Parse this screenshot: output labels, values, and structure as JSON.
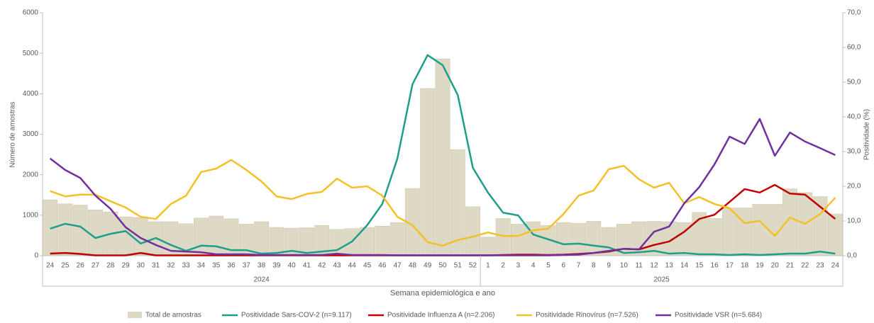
{
  "chart_data": {
    "type": "bar",
    "ylabel": "Número de amostras",
    "y2label": "Positividade (%)",
    "xlabel": "Semana epidemiológica e ano",
    "categories": [
      "24",
      "25",
      "26",
      "27",
      "28",
      "29",
      "30",
      "31",
      "32",
      "33",
      "34",
      "35",
      "36",
      "37",
      "38",
      "39",
      "40",
      "41",
      "42",
      "43",
      "44",
      "45",
      "46",
      "47",
      "48",
      "49",
      "50",
      "51",
      "52",
      "1",
      "2",
      "3",
      "4",
      "5",
      "6",
      "7",
      "8",
      "9",
      "10",
      "11",
      "12",
      "13",
      "14",
      "15",
      "16",
      "17",
      "18",
      "19",
      "20",
      "21",
      "22",
      "23",
      "24"
    ],
    "years": [
      "2024",
      "2024",
      "2024",
      "2024",
      "2024",
      "2024",
      "2024",
      "2024",
      "2024",
      "2024",
      "2024",
      "2024",
      "2024",
      "2024",
      "2024",
      "2024",
      "2024",
      "2024",
      "2024",
      "2024",
      "2024",
      "2024",
      "2024",
      "2024",
      "2024",
      "2024",
      "2024",
      "2024",
      "2024",
      "2025",
      "2025",
      "2025",
      "2025",
      "2025",
      "2025",
      "2025",
      "2025",
      "2025",
      "2025",
      "2025",
      "2025",
      "2025",
      "2025",
      "2025",
      "2025",
      "2025",
      "2025",
      "2025",
      "2025",
      "2025",
      "2025",
      "2025",
      "2025"
    ],
    "ylim": [
      0,
      6000
    ],
    "yticks": [
      0,
      1000,
      2000,
      3000,
      4000,
      5000,
      6000
    ],
    "y2lim": [
      0,
      70
    ],
    "y2ticks": [
      {
        "value": 0,
        "label": "0,0"
      },
      {
        "value": 10,
        "label": "10,0"
      },
      {
        "value": 20,
        "label": "20,0"
      },
      {
        "value": 30,
        "label": "30,0"
      },
      {
        "value": 40,
        "label": "40,0"
      },
      {
        "value": 50,
        "label": "50,0"
      },
      {
        "value": 60,
        "label": "60,0"
      },
      {
        "value": 70,
        "label": "70,0"
      }
    ],
    "series": [
      {
        "name": "Total de amostras",
        "type": "bar",
        "color": "#ddd9c4",
        "values": [
          1380,
          1280,
          1250,
          1130,
          1080,
          960,
          940,
          840,
          840,
          790,
          930,
          980,
          910,
          780,
          840,
          700,
          680,
          690,
          750,
          650,
          670,
          700,
          730,
          820,
          1660,
          4130,
          4860,
          2620,
          1210,
          460,
          920,
          780,
          840,
          750,
          820,
          800,
          850,
          700,
          780,
          840,
          850,
          840,
          820,
          1070,
          920,
          1180,
          1180,
          1270,
          1270,
          1650,
          1560,
          1460,
          1030
        ]
      },
      {
        "name": "Positividade Sars-COV-2 (n=9.117)",
        "type": "line",
        "axis": "y2",
        "color": "#1f9e89",
        "values": [
          7.8,
          9.2,
          8.4,
          5.1,
          6.3,
          7.1,
          3.5,
          5.1,
          3.1,
          1.4,
          2.9,
          2.7,
          1.6,
          1.6,
          0.6,
          0.8,
          1.4,
          0.8,
          1.2,
          1.6,
          4.1,
          8.8,
          14.9,
          28.0,
          49.4,
          57.8,
          54.9,
          46.3,
          25.3,
          18.2,
          12.4,
          11.6,
          6.1,
          4.7,
          3.3,
          3.5,
          2.9,
          2.4,
          0.8,
          1.0,
          1.4,
          0.6,
          0.8,
          0.4,
          0.4,
          0.2,
          0.4,
          0.2,
          0.4,
          0.6,
          0.6,
          1.2,
          0.6
        ]
      },
      {
        "name": "Positividade Influenza A (n=2.206)",
        "type": "line",
        "axis": "y2",
        "color": "#c00000",
        "values": [
          0.6,
          0.8,
          0.5,
          0.1,
          0.1,
          0.1,
          0.8,
          0.1,
          0.1,
          0.1,
          0.1,
          0.1,
          0.1,
          0.1,
          0.1,
          0.1,
          0.1,
          0.1,
          0.1,
          0.1,
          0.1,
          0.1,
          0.1,
          0.1,
          0.1,
          0.1,
          0.1,
          0.1,
          0.1,
          0.1,
          0.2,
          0.3,
          0.3,
          0.2,
          0.3,
          0.5,
          0.8,
          1.2,
          2.0,
          1.8,
          3.1,
          4.1,
          6.9,
          10.6,
          11.8,
          15.5,
          19.2,
          18.2,
          20.4,
          17.9,
          17.6,
          14.1,
          10.6
        ]
      },
      {
        "name": "Positividade Rinovírus (n=7.526)",
        "type": "line",
        "axis": "y2",
        "color": "#f4c02a",
        "values": [
          18.6,
          17.1,
          17.6,
          17.6,
          15.7,
          13.9,
          11.2,
          10.6,
          14.9,
          17.3,
          24.1,
          25.1,
          27.6,
          24.7,
          21.4,
          17.1,
          16.3,
          17.8,
          18.4,
          22.2,
          19.6,
          20.0,
          17.3,
          11.2,
          8.8,
          3.9,
          2.9,
          4.5,
          5.5,
          6.7,
          5.7,
          5.7,
          7.3,
          7.8,
          12.0,
          17.3,
          18.8,
          24.9,
          25.9,
          22.0,
          19.6,
          21.0,
          15.1,
          16.9,
          14.9,
          13.7,
          9.4,
          10.0,
          5.7,
          11.0,
          9.2,
          12.0,
          16.7
        ]
      },
      {
        "name": "Positividade VSR (n=5.684)",
        "type": "line",
        "axis": "y2",
        "color": "#7030a0",
        "values": [
          28.0,
          24.7,
          22.4,
          17.3,
          13.5,
          8.2,
          5.1,
          3.1,
          1.4,
          1.2,
          1.0,
          0.4,
          0.4,
          0.4,
          0.2,
          0.2,
          0.2,
          0.2,
          0.2,
          0.6,
          0.2,
          0.2,
          0.2,
          0.1,
          0.1,
          0.1,
          0.1,
          0.1,
          0.1,
          0.1,
          0.1,
          0.1,
          0.1,
          0.1,
          0.2,
          0.3,
          0.8,
          1.4,
          2.0,
          1.8,
          6.9,
          8.4,
          15.1,
          19.8,
          26.3,
          34.3,
          32.2,
          39.4,
          28.8,
          35.5,
          32.9,
          31.0,
          29.0
        ]
      }
    ]
  }
}
